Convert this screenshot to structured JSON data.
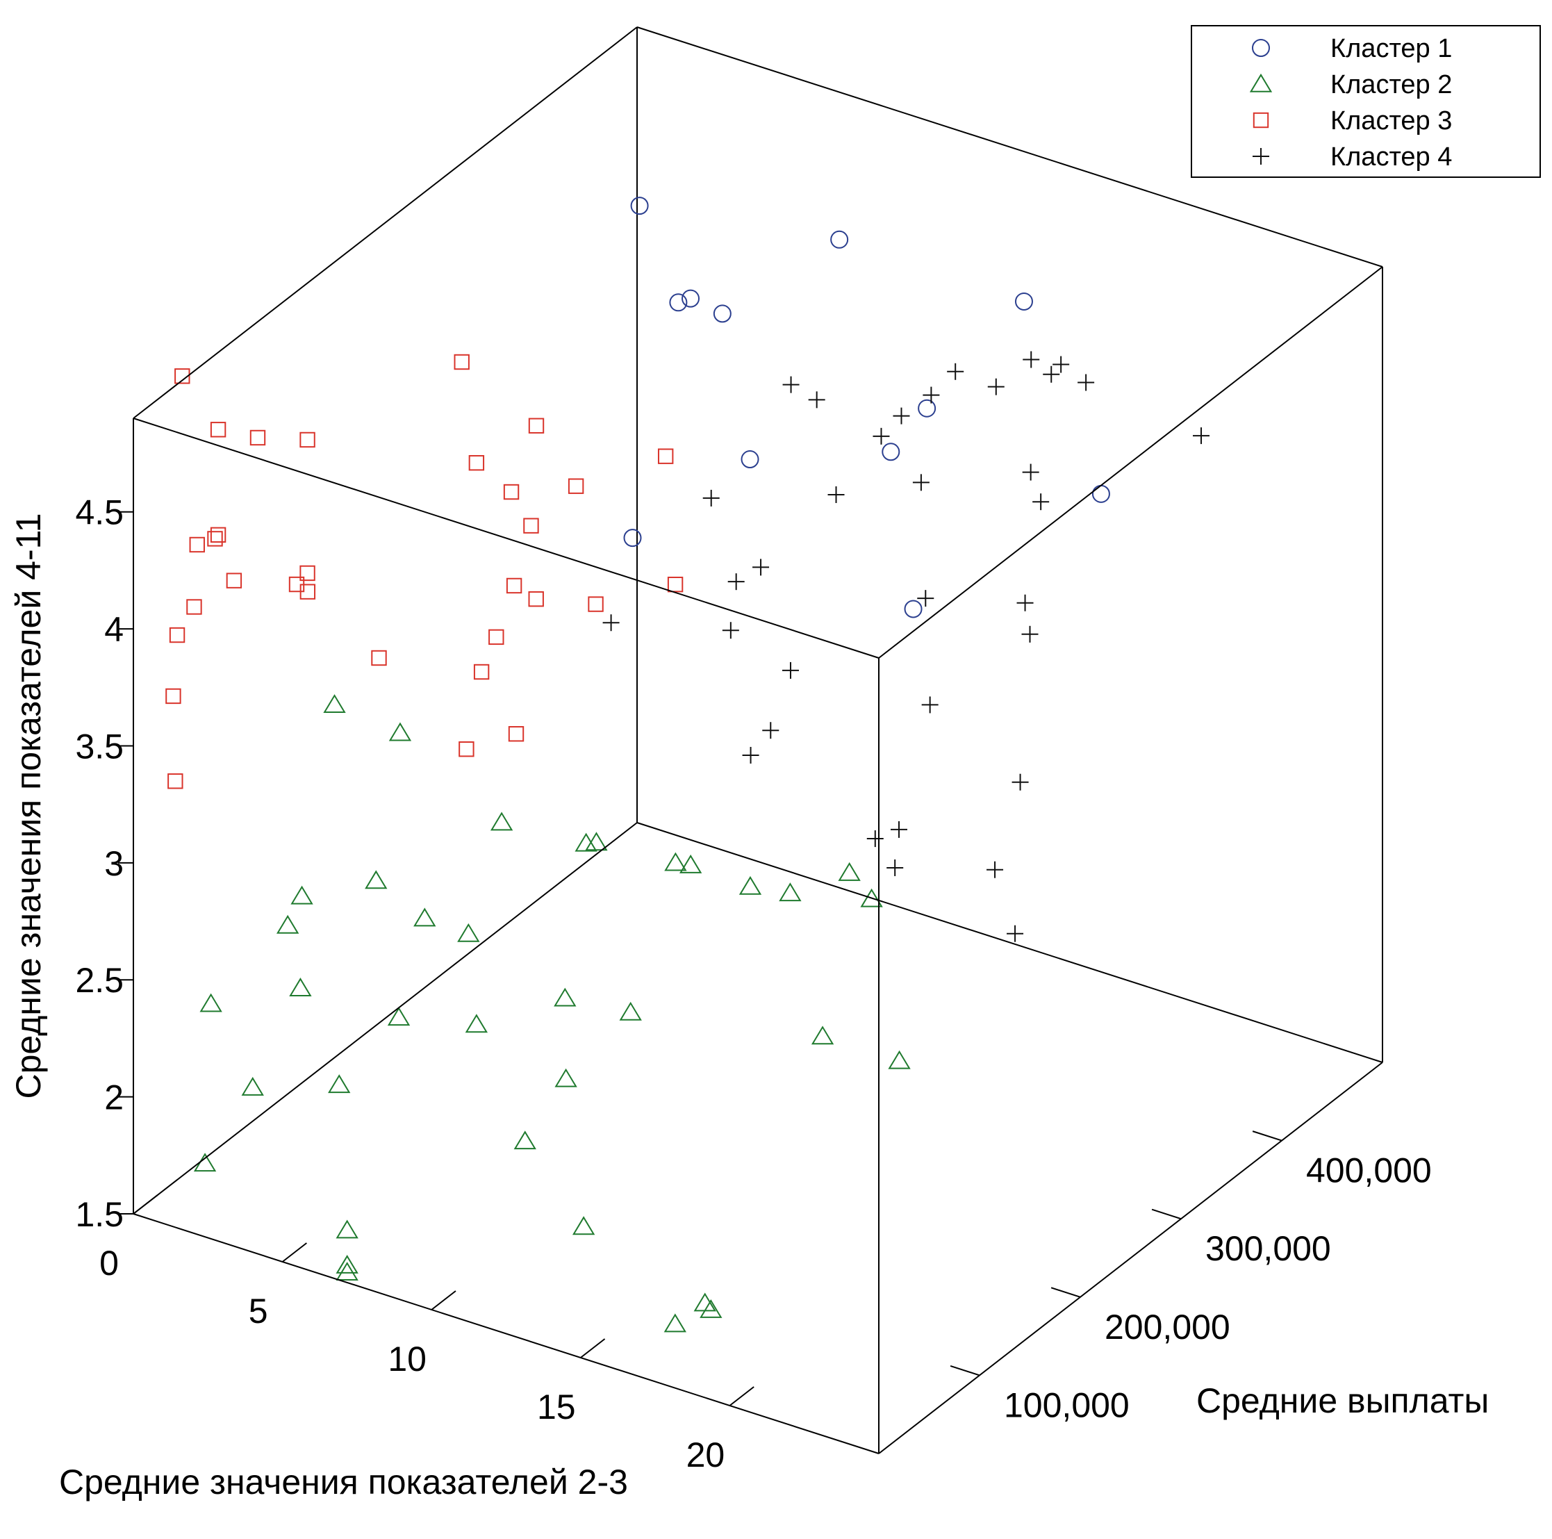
{
  "chart_data": {
    "type": "scatter",
    "dimensions": 3,
    "title": "",
    "axes": {
      "x": {
        "label": "Средние значения показателей 2-3",
        "range": [
          0,
          25
        ],
        "ticks": [
          0,
          5,
          10,
          15,
          20
        ],
        "tick_labels": [
          "0",
          "5",
          "10",
          "15",
          "20"
        ]
      },
      "y": {
        "label": "Средние выплаты",
        "range": [
          0,
          500000
        ],
        "ticks": [
          100000,
          200000,
          300000,
          400000
        ],
        "tick_labels": [
          "100,000",
          "200,000",
          "300,000",
          "400,000"
        ]
      },
      "z": {
        "label": "Средние значения показателей 4-11",
        "range": [
          1.5,
          4.9
        ],
        "ticks": [
          1.5,
          2,
          2.5,
          3,
          3.5,
          4,
          4.5
        ],
        "tick_labels": [
          "1.5",
          "2",
          "2.5",
          "3",
          "3.5",
          "4",
          "4.5"
        ]
      }
    },
    "legend": {
      "position": "top-right"
    },
    "grid": false,
    "series": [
      {
        "name": "Кластер 1",
        "marker": "circle",
        "color": "#2b3f8f",
        "points": [
          {
            "x": 7.2,
            "y": 340000,
            "z": 4.57
          },
          {
            "x": 3.8,
            "y": 390000,
            "z": 4.66
          },
          {
            "x": 5.1,
            "y": 390000,
            "z": 4.3
          },
          {
            "x": 10.5,
            "y": 390000,
            "z": 4.79
          },
          {
            "x": 17.2,
            "y": 375000,
            "z": 4.85
          },
          {
            "x": 15.8,
            "y": 320000,
            "z": 4.52
          },
          {
            "x": 3.2,
            "y": 490000,
            "z": 3.84
          },
          {
            "x": 4.8,
            "y": 470000,
            "z": 3.35
          },
          {
            "x": 10.2,
            "y": 450000,
            "z": 3.67
          },
          {
            "x": 15.9,
            "y": 490000,
            "z": 3.59
          },
          {
            "x": 1.2,
            "y": 460000,
            "z": 2.9
          },
          {
            "x": 9.6,
            "y": 490000,
            "z": 2.84
          }
        ]
      },
      {
        "name": "Кластер 2",
        "marker": "triangle",
        "color": "#1f7a2e",
        "points": [
          {
            "x": 5.8,
            "y": 28000,
            "z": 3.82
          },
          {
            "x": 8.0,
            "y": 28000,
            "z": 3.79
          },
          {
            "x": 11.0,
            "y": 40000,
            "z": 3.49
          },
          {
            "x": 14.0,
            "y": 35000,
            "z": 3.54
          },
          {
            "x": 13.5,
            "y": 60000,
            "z": 3.44
          },
          {
            "x": 17.0,
            "y": 35000,
            "z": 3.58
          },
          {
            "x": 17.0,
            "y": 50000,
            "z": 3.52
          },
          {
            "x": 19.0,
            "y": 50000,
            "z": 3.51
          },
          {
            "x": 20.0,
            "y": 60000,
            "z": 3.49
          },
          {
            "x": 23.0,
            "y": 30000,
            "z": 3.8
          },
          {
            "x": 22.9,
            "y": 55000,
            "z": 3.6
          },
          {
            "x": 4.5,
            "y": 20000,
            "z": 2.85
          },
          {
            "x": 4.3,
            "y": 40000,
            "z": 2.9
          },
          {
            "x": 7.8,
            "y": 10000,
            "z": 3.21
          },
          {
            "x": 9.6,
            "y": 5000,
            "z": 3.14
          },
          {
            "x": 10.9,
            "y": 10000,
            "z": 3.11
          },
          {
            "x": 13.8,
            "y": 20000,
            "z": 2.92
          },
          {
            "x": 16.0,
            "y": 20000,
            "z": 2.95
          },
          {
            "x": 22.0,
            "y": 33000,
            "z": 3.05
          },
          {
            "x": 24.0,
            "y": 50000,
            "z": 2.97
          },
          {
            "x": 5.5,
            "y": 3000,
            "z": 2.68
          },
          {
            "x": 11.0,
            "y": 15000,
            "z": 2.71
          },
          {
            "x": 14.0,
            "y": 15000,
            "z": 2.6
          },
          {
            "x": 8.8,
            "y": 3000,
            "z": 2.69
          },
          {
            "x": 2.5,
            "y": 3000,
            "z": 2.49
          },
          {
            "x": 6.8,
            "y": 3000,
            "z": 2.32
          },
          {
            "x": 3.9,
            "y": 3000,
            "z": 2.19
          },
          {
            "x": 15.0,
            "y": 3000,
            "z": 2.05
          },
          {
            "x": 13.0,
            "y": 4000,
            "z": 2.33
          },
          {
            "x": 18.0,
            "y": 5000,
            "z": 1.75
          },
          {
            "x": 19.0,
            "y": 5000,
            "z": 1.88
          },
          {
            "x": 19.2,
            "y": 5000,
            "z": 1.86
          },
          {
            "x": 7.0,
            "y": 5000,
            "z": 1.7
          },
          {
            "x": 7.0,
            "y": 5000,
            "z": 1.55
          },
          {
            "x": 7.0,
            "y": 5000,
            "z": 1.52
          },
          {
            "x": 2.3,
            "y": 3000,
            "z": 1.8
          }
        ]
      },
      {
        "name": "Кластер 3",
        "marker": "square",
        "color": "#d9342b",
        "points": [
          {
            "x": 1.3,
            "y": 10000,
            "z": 5.1
          },
          {
            "x": 3.9,
            "y": 8000,
            "z": 4.95
          },
          {
            "x": 5.5,
            "y": 10000,
            "z": 5.0
          },
          {
            "x": 10.0,
            "y": 30000,
            "z": 5.45
          },
          {
            "x": 11.0,
            "y": 15000,
            "z": 5.11
          },
          {
            "x": 13.0,
            "y": 10000,
            "z": 4.94
          },
          {
            "x": 12.5,
            "y": 30000,
            "z": 5.28
          },
          {
            "x": 12.0,
            "y": 20000,
            "z": 5.01
          },
          {
            "x": 14.0,
            "y": 25000,
            "z": 5.1
          },
          {
            "x": 16.5,
            "y": 40000,
            "z": 5.28
          },
          {
            "x": 12.5,
            "y": 8000,
            "z": 4.67
          },
          {
            "x": 17.5,
            "y": 20000,
            "z": 4.84
          },
          {
            "x": 13.0,
            "y": 15000,
            "z": 4.61
          },
          {
            "x": 15.0,
            "y": 15000,
            "z": 4.67
          },
          {
            "x": 12.0,
            "y": 5000,
            "z": 4.44
          },
          {
            "x": 2.0,
            "y": 25000,
            "z": 4.85
          },
          {
            "x": 5.5,
            "y": 10000,
            "z": 4.43
          },
          {
            "x": 1.8,
            "y": 10000,
            "z": 4.4
          },
          {
            "x": 2.4,
            "y": 10000,
            "z": 4.45
          },
          {
            "x": 4.8,
            "y": 20000,
            "z": 4.32
          },
          {
            "x": 8.0,
            "y": 7000,
            "z": 4.18
          },
          {
            "x": 1.7,
            "y": 10000,
            "z": 4.13
          },
          {
            "x": 2.7,
            "y": 20000,
            "z": 4.25
          },
          {
            "x": 1.3,
            "y": 5000,
            "z": 4.01
          },
          {
            "x": 5.0,
            "y": 25000,
            "z": 4.28
          },
          {
            "x": 11.0,
            "y": 20000,
            "z": 4.2
          },
          {
            "x": 12.5,
            "y": 10000,
            "z": 4.03
          },
          {
            "x": 11.0,
            "y": 5000,
            "z": 3.92
          },
          {
            "x": 1.0,
            "y": 10000,
            "z": 3.72
          },
          {
            "x": 2.0,
            "y": 25000,
            "z": 4.4
          },
          {
            "x": 1.0,
            "y": 12000,
            "z": 3.35
          }
        ]
      },
      {
        "name": "Кластер 4",
        "marker": "plus",
        "color": "#111111",
        "points": [
          {
            "x": 18.0,
            "y": 120000,
            "z": 5.38
          },
          {
            "x": 22.5,
            "y": 150000,
            "z": 5.52
          },
          {
            "x": 20.0,
            "y": 200000,
            "z": 5.15
          },
          {
            "x": 21.5,
            "y": 220000,
            "z": 5.18
          },
          {
            "x": 22.0,
            "y": 240000,
            "z": 5.25
          },
          {
            "x": 23.0,
            "y": 240000,
            "z": 5.27
          },
          {
            "x": 23.5,
            "y": 250000,
            "z": 5.18
          },
          {
            "x": 22.0,
            "y": 260000,
            "z": 5.12
          },
          {
            "x": 19.0,
            "y": 180000,
            "z": 5.0
          },
          {
            "x": 19.0,
            "y": 200000,
            "z": 5.02
          },
          {
            "x": 16.5,
            "y": 190000,
            "z": 5.02
          },
          {
            "x": 23.0,
            "y": 210000,
            "z": 4.91
          },
          {
            "x": 16.0,
            "y": 100000,
            "z": 4.88
          },
          {
            "x": 18.5,
            "y": 150000,
            "z": 4.83
          },
          {
            "x": 20.0,
            "y": 190000,
            "z": 4.81
          },
          {
            "x": 23.0,
            "y": 220000,
            "z": 4.75
          },
          {
            "x": 18.0,
            "y": 90000,
            "z": 4.7
          },
          {
            "x": 14.5,
            "y": 45000,
            "z": 4.47
          },
          {
            "x": 17.5,
            "y": 75000,
            "z": 4.46
          },
          {
            "x": 19.0,
            "y": 90000,
            "z": 4.3
          },
          {
            "x": 23.0,
            "y": 110000,
            "z": 4.25
          },
          {
            "x": 21.5,
            "y": 150000,
            "z": 4.51
          },
          {
            "x": 24.5,
            "y": 160000,
            "z": 4.58
          },
          {
            "x": 25.0,
            "y": 150000,
            "z": 4.5
          },
          {
            "x": 25.0,
            "y": 320000,
            "z": 4.78
          },
          {
            "x": 16.5,
            "y": 110000,
            "z": 4.51
          },
          {
            "x": 18.0,
            "y": 80000,
            "z": 3.93
          },
          {
            "x": 18.5,
            "y": 85000,
            "z": 4.04
          },
          {
            "x": 21.5,
            "y": 100000,
            "z": 3.65
          },
          {
            "x": 22.5,
            "y": 90000,
            "z": 3.6
          },
          {
            "x": 24.5,
            "y": 130000,
            "z": 3.54
          },
          {
            "x": 24.0,
            "y": 170000,
            "z": 3.76
          },
          {
            "x": 25.0,
            "y": 20000,
            "z": 4.1
          },
          {
            "x": 24.5,
            "y": 150000,
            "z": 3.2
          }
        ]
      }
    ]
  }
}
